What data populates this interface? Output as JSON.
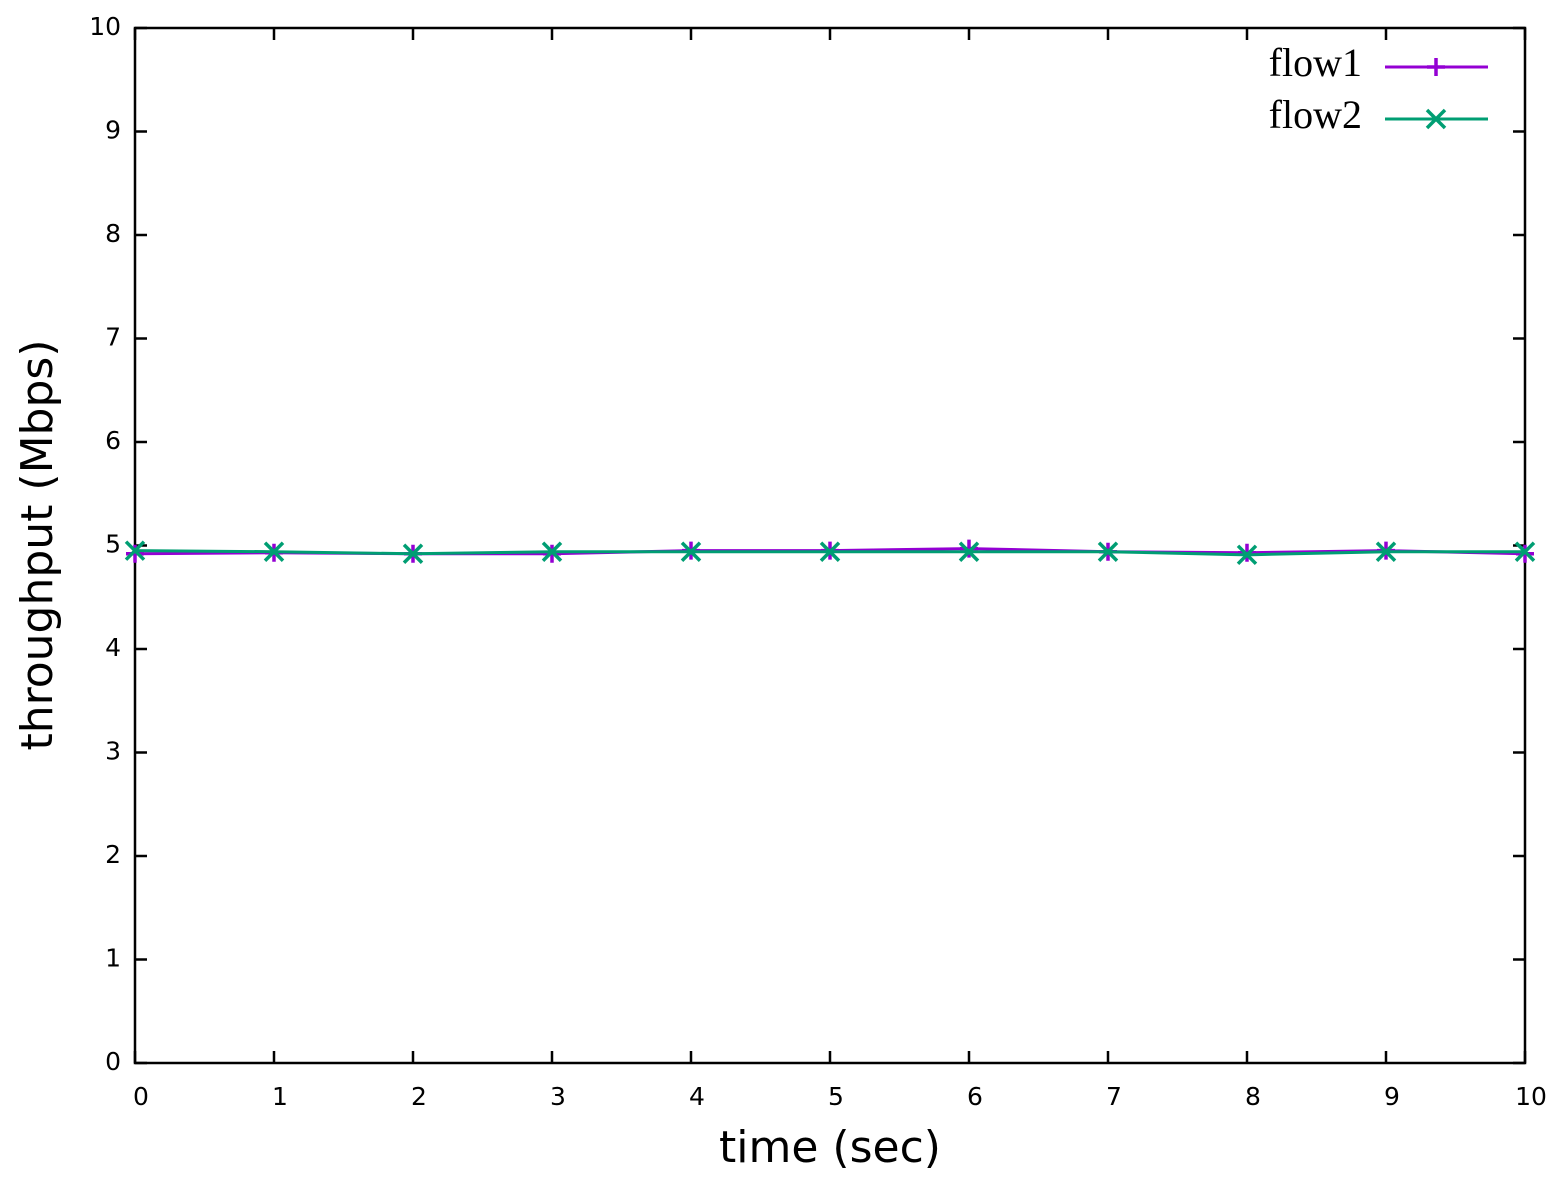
{
  "chart_data": {
    "type": "line",
    "x_label": "time (sec)",
    "y_label": "throughput (Mbps)",
    "x": [
      0,
      1,
      2,
      3,
      4,
      5,
      6,
      7,
      8,
      9,
      10
    ],
    "series": [
      {
        "name": "flow1",
        "color": "#9400d3",
        "marker": "plus",
        "values": [
          4.92,
          4.93,
          4.92,
          4.92,
          4.95,
          4.95,
          4.97,
          4.94,
          4.93,
          4.95,
          4.92
        ]
      },
      {
        "name": "flow2",
        "color": "#009e73",
        "marker": "x",
        "values": [
          4.95,
          4.94,
          4.92,
          4.94,
          4.94,
          4.94,
          4.94,
          4.94,
          4.91,
          4.94,
          4.94
        ]
      }
    ],
    "xlim": [
      0,
      10
    ],
    "xticks": [
      0,
      1,
      2,
      3,
      4,
      5,
      6,
      7,
      8,
      9,
      10
    ],
    "ylim": [
      0,
      10
    ],
    "yticks": [
      0,
      1,
      2,
      3,
      4,
      5,
      6,
      7,
      8,
      9,
      10
    ],
    "legend": "top-right",
    "grid": false
  }
}
